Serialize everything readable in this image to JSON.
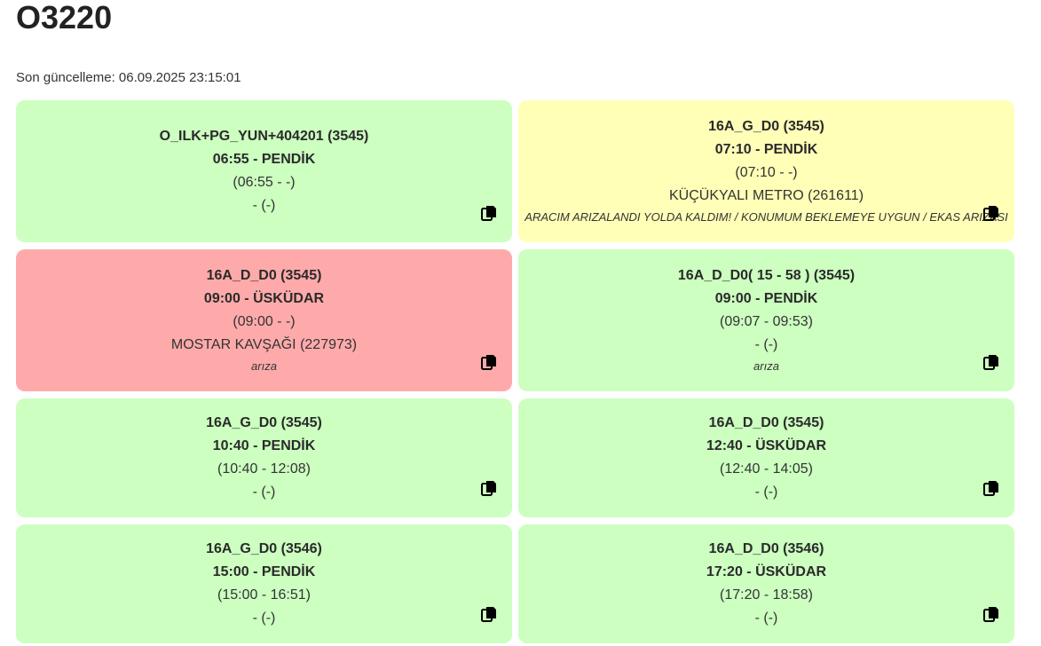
{
  "page": {
    "title": "O3220",
    "last_update": "Son güncelleme: 06.09.2025 23:15:01"
  },
  "cards": [
    {
      "status": "green",
      "route": "O_ILK+PG_YUN+404201 (3545)",
      "departure": "06:55 - PENDİK",
      "times": "(06:55 - -)",
      "location": "- (-)",
      "note": ""
    },
    {
      "status": "yellow",
      "route": "16A_G_D0 (3545)",
      "departure": "07:10 - PENDİK",
      "times": "(07:10 - -)",
      "location": "KÜÇÜKYALI METRO (261611)",
      "note": "ARACIM ARIZALANDI YOLDA KALDIM! / KONUMUM BEKLEMEYE UYGUN / EKAS ARIZASI"
    },
    {
      "status": "red",
      "route": "16A_D_D0 (3545)",
      "departure": "09:00 - ÜSKÜDAR",
      "times": "(09:00 - -)",
      "location": "MOSTAR KAVŞAĞI (227973)",
      "note": "arıza"
    },
    {
      "status": "green",
      "route": "16A_D_D0( 15 - 58 ) (3545)",
      "departure": "09:00 - PENDİK",
      "times": "(09:07 - 09:53)",
      "location": "- (-)",
      "note": "arıza"
    },
    {
      "status": "green",
      "route": "16A_G_D0 (3545)",
      "departure": "10:40 - PENDİK",
      "times": "(10:40 - 12:08)",
      "location": "- (-)",
      "note": ""
    },
    {
      "status": "green",
      "route": "16A_D_D0 (3545)",
      "departure": "12:40 - ÜSKÜDAR",
      "times": "(12:40 - 14:05)",
      "location": "- (-)",
      "note": ""
    },
    {
      "status": "green",
      "route": "16A_G_D0 (3546)",
      "departure": "15:00 - PENDİK",
      "times": "(15:00 - 16:51)",
      "location": "- (-)",
      "note": ""
    },
    {
      "status": "green",
      "route": "16A_D_D0 (3546)",
      "departure": "17:20 - ÜSKÜDAR",
      "times": "(17:20 - 18:58)",
      "location": "- (-)",
      "note": ""
    }
  ],
  "colors": {
    "green": "#ccffc0",
    "yellow": "#ffffb8",
    "red": "#ffaaaa"
  },
  "icons": {
    "copy": "copy-icon"
  }
}
